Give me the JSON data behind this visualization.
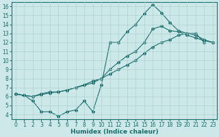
{
  "xlabel": "Humidex (Indice chaleur)",
  "xlim": [
    -0.5,
    23.5
  ],
  "ylim": [
    3.5,
    16.5
  ],
  "xticks": [
    0,
    1,
    2,
    3,
    4,
    5,
    6,
    7,
    8,
    9,
    10,
    11,
    12,
    13,
    14,
    15,
    16,
    17,
    18,
    19,
    20,
    21,
    22,
    23
  ],
  "yticks": [
    4,
    5,
    6,
    7,
    8,
    9,
    10,
    11,
    12,
    13,
    14,
    15,
    16
  ],
  "bg_color": "#cce8e8",
  "line_color": "#1a6b6b",
  "grid_color": "#b0d0d0",
  "line1_x": [
    0,
    1,
    2,
    3,
    4,
    5,
    6,
    7,
    8,
    9,
    10,
    11,
    12,
    13,
    14,
    15,
    16,
    17,
    18,
    19,
    20,
    21,
    22
  ],
  "line1_y": [
    6.3,
    6.1,
    5.5,
    4.3,
    4.3,
    3.8,
    4.3,
    4.5,
    5.5,
    4.3,
    7.3,
    12.0,
    12.0,
    13.2,
    14.0,
    15.2,
    16.2,
    15.3,
    14.2,
    13.3,
    13.0,
    13.0,
    12.0
  ],
  "line2_x": [
    0,
    1,
    2,
    3,
    4,
    5,
    6,
    9,
    10,
    11,
    12,
    13,
    14,
    15,
    16,
    17,
    18,
    19,
    20,
    21,
    22,
    23
  ],
  "line2_y": [
    6.3,
    6.1,
    6.0,
    6.3,
    6.5,
    6.5,
    6.7,
    7.5,
    8.0,
    9.0,
    9.8,
    10.5,
    11.0,
    12.0,
    13.5,
    13.8,
    13.3,
    13.2,
    12.8,
    12.5,
    12.2,
    12.0
  ],
  "line3_x": [
    0,
    1,
    2,
    3,
    4,
    5,
    6,
    7,
    8,
    9,
    10,
    11,
    12,
    13,
    14,
    15,
    16,
    17,
    18,
    19,
    20,
    21,
    22,
    23
  ],
  "line3_y": [
    6.3,
    6.1,
    6.0,
    6.2,
    6.4,
    6.5,
    6.7,
    7.0,
    7.3,
    7.7,
    8.0,
    8.5,
    9.0,
    9.5,
    10.0,
    10.8,
    11.5,
    12.0,
    12.3,
    12.8,
    13.0,
    12.8,
    12.3,
    12.0
  ],
  "marker": "D",
  "markersize": 2.0,
  "linewidth": 0.8,
  "tick_fontsize": 5.5,
  "xlabel_fontsize": 6.5
}
